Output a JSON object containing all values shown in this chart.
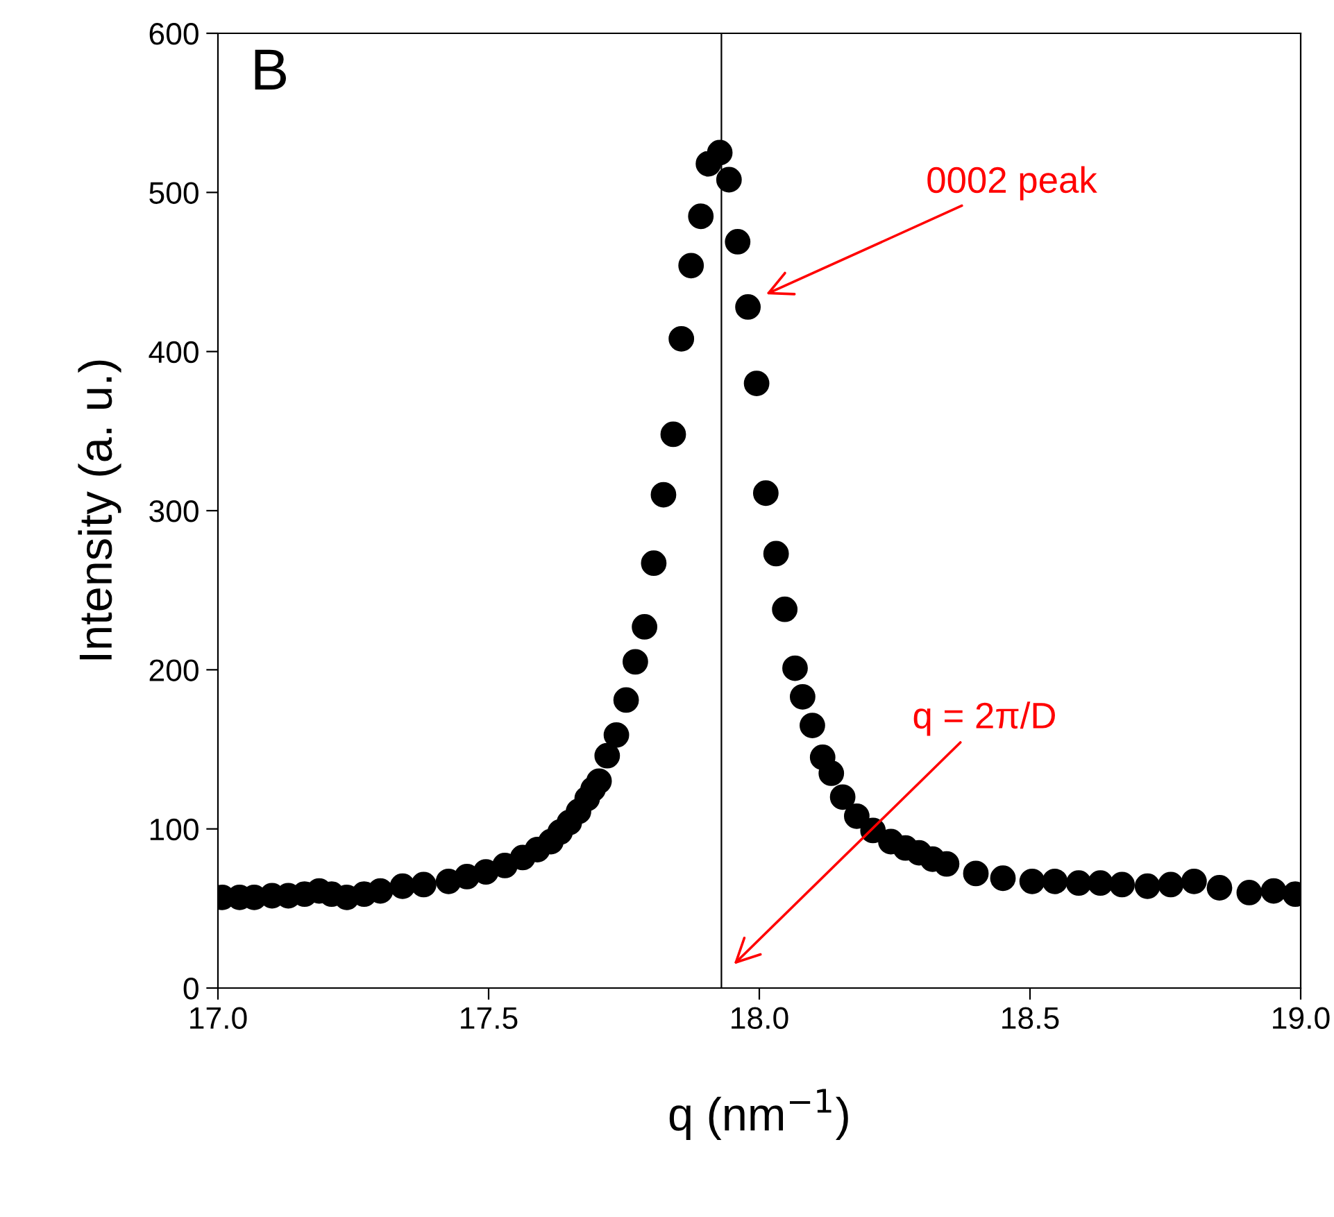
{
  "chart_data": {
    "type": "scatter",
    "xlabel": "q (nm$^{−1}$)",
    "ylabel": "Intensity (a. u.)",
    "x": [
      17.008,
      17.04,
      17.067,
      17.1,
      17.13,
      17.16,
      17.187,
      17.21,
      17.238,
      17.27,
      17.3,
      17.341,
      17.38,
      17.426,
      17.46,
      17.495,
      17.53,
      17.563,
      17.59,
      17.615,
      17.632,
      17.649,
      17.666,
      17.682,
      17.693,
      17.704,
      17.719,
      17.736,
      17.754,
      17.771,
      17.788,
      17.805,
      17.823,
      17.841,
      17.856,
      17.874,
      17.892,
      17.906,
      17.927,
      17.944,
      17.96,
      17.979,
      17.995,
      18.012,
      18.031,
      18.047,
      18.066,
      18.08,
      18.098,
      18.117,
      18.133,
      18.154,
      18.18,
      18.21,
      18.243,
      18.27,
      18.295,
      18.32,
      18.346,
      18.4,
      18.45,
      18.504,
      18.546,
      18.59,
      18.63,
      18.67,
      18.717,
      18.76,
      18.803,
      18.85,
      18.905,
      18.95,
      18.99
    ],
    "series": [
      {
        "color": "#000000",
        "values": [
          57,
          57,
          57,
          58,
          58,
          59,
          61,
          59,
          57,
          59,
          61,
          64,
          65,
          67,
          70,
          73,
          77,
          82,
          87,
          92,
          98,
          104,
          111,
          119,
          125,
          130,
          146,
          159,
          181,
          205,
          227,
          267,
          310,
          348,
          408,
          454,
          485,
          518,
          525,
          508,
          469,
          428,
          380,
          311,
          273,
          238,
          201,
          183,
          165,
          145,
          135,
          120,
          108,
          99,
          92,
          88,
          85,
          81,
          78,
          72,
          69,
          67,
          67,
          66,
          66,
          65,
          64,
          65,
          67,
          63,
          60,
          61,
          59
        ]
      }
    ],
    "xlim": [
      17,
      19
    ],
    "ylim": [
      0,
      600
    ],
    "xticks": [
      {
        "value": 17,
        "label": "17.0"
      },
      {
        "value": 17.5,
        "label": "17.5"
      },
      {
        "value": 18,
        "label": "18.0"
      },
      {
        "value": 18.5,
        "label": "18.5"
      },
      {
        "value": 19,
        "label": "19.0"
      }
    ],
    "yticks": [
      0,
      100,
      200,
      300,
      400,
      500,
      600
    ],
    "ref_lines": [
      {
        "axis": "x",
        "value": 17.93,
        "color": "#000000"
      }
    ],
    "annotations": [
      "B",
      "0002 peak",
      "q = 2π/D"
    ],
    "marker": "circle",
    "grid": false,
    "legend": false
  }
}
